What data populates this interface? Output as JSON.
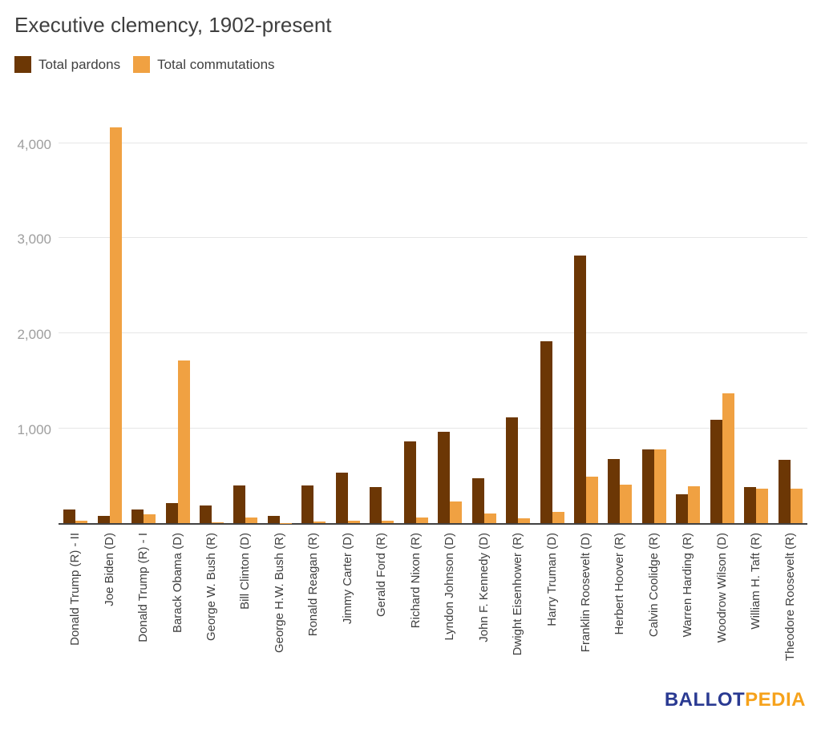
{
  "chart_data": {
    "type": "bar",
    "title": "Executive clemency, 1902-present",
    "xlabel": "",
    "ylabel": "",
    "grid": true,
    "legend_position": "top",
    "ylim": [
      0,
      4260
    ],
    "yticks": [
      {
        "value": 1000,
        "label": "1,000"
      },
      {
        "value": 2000,
        "label": "2,000"
      },
      {
        "value": 3000,
        "label": "3,000"
      },
      {
        "value": 4000,
        "label": "4,000"
      }
    ],
    "categories": [
      "Donald Trump (R) - II",
      "Joe Biden (D)",
      "Donald Trump (R) - I",
      "Barack Obama (D)",
      "George W. Bush (R)",
      "Bill Clinton (D)",
      "George H.W. Bush (R)",
      "Ronald Reagan (R)",
      "Jimmy Carter (D)",
      "Gerald Ford (R)",
      "Richard Nixon (R)",
      "Lyndon Johnson (D)",
      "John F. Kennedy (D)",
      "Dwight Eisenhower (R)",
      "Harry Truman (D)",
      "Franklin Roosevelt (D)",
      "Herbert Hoover (R)",
      "Calvin Coolidge (R)",
      "Warren Harding (R)",
      "Woodrow Wilson (D)",
      "William H. Taft (R)",
      "Theodore Roosevelt (R)"
    ],
    "series": [
      {
        "name": "Total pardons",
        "color": "#6c3705",
        "values": [
          140,
          80,
          144,
          212,
          189,
          396,
          74,
          393,
          534,
          382,
          863,
          960,
          472,
          1110,
          1913,
          2819,
          672,
          773,
          300,
          1087,
          383,
          668
        ]
      },
      {
        "name": "Total commutations",
        "color": "#f0a142",
        "values": [
          25,
          4165,
          94,
          1715,
          11,
          61,
          3,
          13,
          29,
          22,
          60,
          226,
          100,
          47,
          118,
          488,
          405,
          773,
          386,
          1366,
          361,
          363
        ]
      }
    ]
  },
  "footer": {
    "logo_ballot": "BALLOT",
    "logo_pedia": "PEDIA"
  },
  "colors": {
    "pardons_bar": "#6c3705",
    "commutations_bar": "#f0a142",
    "gridline": "#e6e6e6",
    "axis_line": "#424242",
    "y_tick_text": "#9e9e9e",
    "x_tick_text": "#3f3f3f",
    "title_text": "#3f3f3f",
    "logo_blue": "#2a3a92",
    "logo_orange": "#f6a21b",
    "background": "#ffffff"
  }
}
